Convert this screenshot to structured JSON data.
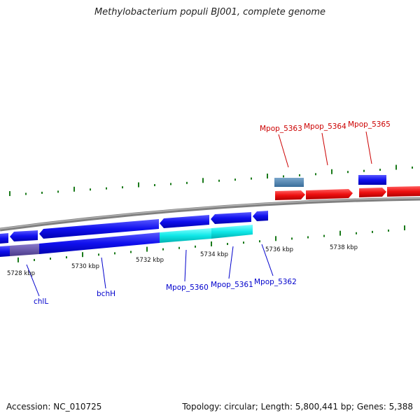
{
  "title": "Methylobacterium populi BJ001, complete genome",
  "footer": {
    "accession": "Accession: NC_010725",
    "summary": "Topology: circular; Length: 5,800,441 bp; Genes: 5,388"
  },
  "colors": {
    "forward_gene": "#e00000",
    "reverse_gene": "#0000e0",
    "highlight_gene": "#00e0e0",
    "muted_gene": "#4682b4",
    "backbone": "#888888",
    "tick": "#1a7a1a",
    "forward_label": "#cc0000",
    "reverse_label": "#0000cc"
  },
  "chart_data": {
    "type": "genome-map",
    "axis_labels": [
      "5728 kbp",
      "5730 kbp",
      "5732 kbp",
      "5734 kbp",
      "5736 kbp",
      "5738 kbp"
    ],
    "forward_labels": [
      "Mpop_5363",
      "Mpop_5364",
      "Mpop_5365"
    ],
    "reverse_labels": [
      "chlL",
      "bchH",
      "Mpop_5360",
      "Mpop_5361",
      "Mpop_5362"
    ]
  }
}
